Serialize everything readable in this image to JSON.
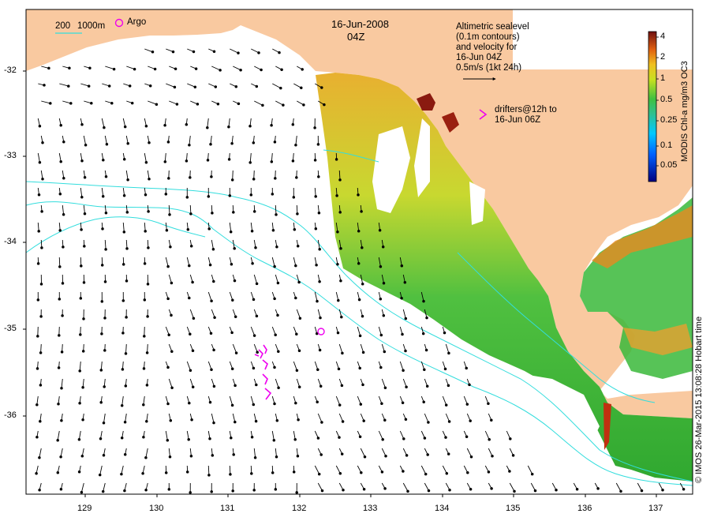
{
  "title": {
    "date": "16-Jun-2008",
    "time": "04Z"
  },
  "depth_legend": {
    "label_a": "200",
    "label_b": "1000m"
  },
  "argo_legend": {
    "label": "Argo"
  },
  "altimetry_note": [
    "Altimetric sealevel",
    "(0.1m contours)",
    "and velocity for",
    "16-Jun 04Z",
    "0.5m/s (1kt 24h)"
  ],
  "drifters_note": [
    "drifters@12h to",
    "16-Jun 06Z"
  ],
  "colorbar": {
    "title": "MODIS Chl-a mg/m3 OC3",
    "ticks": [
      "4",
      "2",
      "1",
      "0.5",
      "0.25",
      "0.1",
      "0.05"
    ]
  },
  "x_ticks": [
    "129",
    "130",
    "131",
    "132",
    "133",
    "134",
    "135",
    "136",
    "137"
  ],
  "y_ticks": [
    "-32",
    "-33",
    "-34",
    "-35",
    "-36"
  ],
  "credit": "© IMOS 26-Mar-2015 13:08:28 Hobart time",
  "colors": {
    "land": "#f9c9a0",
    "contour": "#33dddd",
    "drifter": "#ee00ee",
    "chl_high": "#7a1010",
    "chl_mid": "#e89a20",
    "chl_low": "#3ab83a"
  }
}
